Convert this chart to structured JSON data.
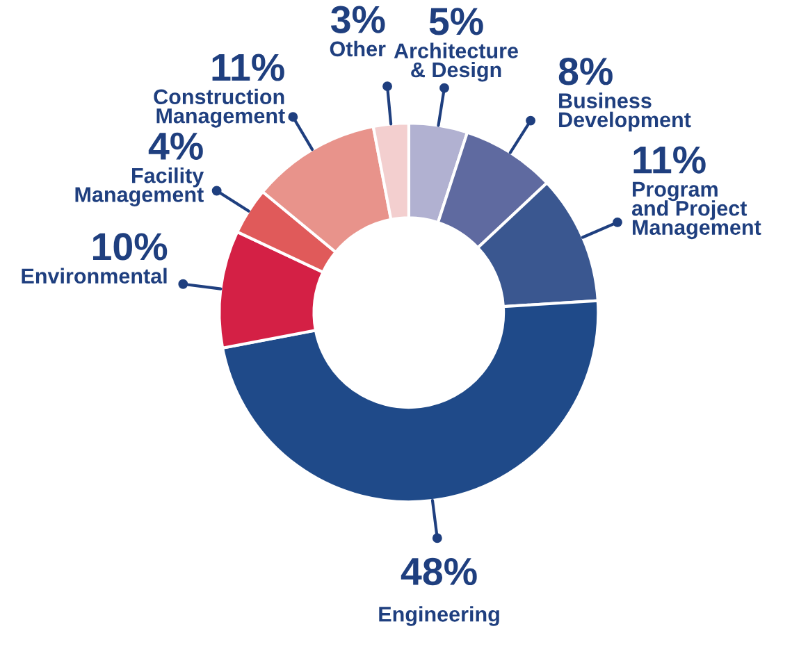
{
  "chart_data": {
    "type": "donut",
    "categories": [
      "Architecture\n& Design",
      "Business\nDevelopment",
      "Program\nand Project\nManagement",
      "Engineering",
      "Environmental",
      "Facility\nManagement",
      "Construction\nManagement",
      "Other"
    ],
    "values": [
      5,
      8,
      11,
      48,
      10,
      4,
      11,
      3
    ],
    "colors": [
      "#b1b1d1",
      "#5f6aa0",
      "#3a5790",
      "#1f4a89",
      "#d42045",
      "#e05a5a",
      "#e8938b",
      "#f3cfcf"
    ],
    "value_labels": [
      "5%",
      "8%",
      "11%",
      "48%",
      "10%",
      "4%",
      "11%",
      "3%"
    ],
    "legend": false
  }
}
